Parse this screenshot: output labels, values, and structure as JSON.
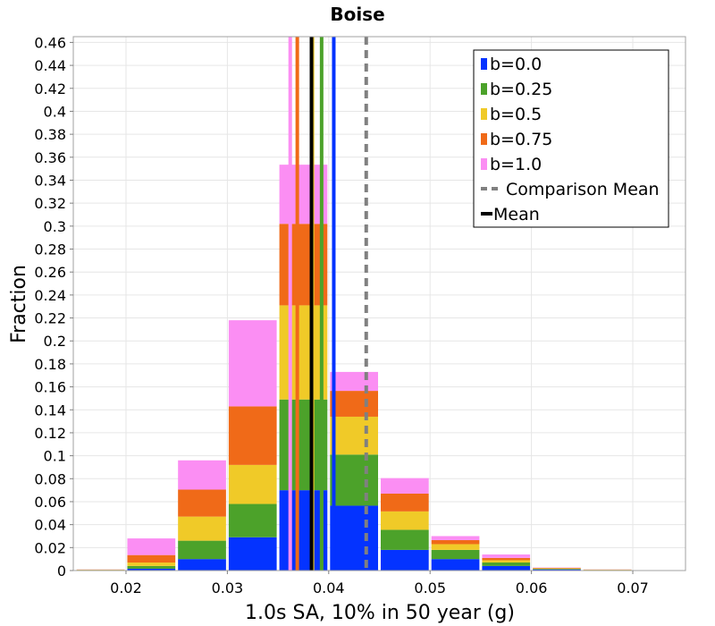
{
  "chart_data": {
    "type": "bar",
    "stacked": true,
    "title": "Boise",
    "xlabel": "1.0s SA, 10% in 50 year (g)",
    "ylabel": "Fraction",
    "xlim": [
      0.0148,
      0.0752
    ],
    "ylim": [
      0,
      0.465
    ],
    "grid": true,
    "legend_position": "top-right",
    "x_ticks": [
      "0.02",
      "0.03",
      "0.04",
      "0.05",
      "0.06",
      "0.07"
    ],
    "y_ticks": [
      "0",
      "0.02",
      "0.04",
      "0.06",
      "0.08",
      "0.1",
      "0.12",
      "0.14",
      "0.16",
      "0.18",
      "0.2",
      "0.22",
      "0.24",
      "0.26",
      "0.28",
      "0.3",
      "0.32",
      "0.34",
      "0.36",
      "0.38",
      "0.4",
      "0.42",
      "0.44",
      "0.46"
    ],
    "bins": [
      {
        "x0": 0.015,
        "x1": 0.02
      },
      {
        "x0": 0.02,
        "x1": 0.025
      },
      {
        "x0": 0.025,
        "x1": 0.03
      },
      {
        "x0": 0.03,
        "x1": 0.035
      },
      {
        "x0": 0.035,
        "x1": 0.04
      },
      {
        "x0": 0.04,
        "x1": 0.045
      },
      {
        "x0": 0.045,
        "x1": 0.05
      },
      {
        "x0": 0.05,
        "x1": 0.055
      },
      {
        "x0": 0.055,
        "x1": 0.06
      },
      {
        "x0": 0.06,
        "x1": 0.065
      },
      {
        "x0": 0.065,
        "x1": 0.07
      }
    ],
    "series": [
      {
        "name": "b=0.0",
        "color": "#0433ff",
        "values": [
          0.0003,
          0.0016,
          0.01,
          0.029,
          0.07,
          0.0565,
          0.018,
          0.01,
          0.004,
          0.001,
          0.0003
        ]
      },
      {
        "name": "b=0.25",
        "color": "#4ca22a",
        "values": [
          0.0002,
          0.0024,
          0.016,
          0.029,
          0.079,
          0.0445,
          0.0175,
          0.008,
          0.003,
          0.0005,
          0.0002
        ]
      },
      {
        "name": "b=0.5",
        "color": "#f0ca28",
        "values": [
          0.0002,
          0.003,
          0.021,
          0.034,
          0.082,
          0.033,
          0.016,
          0.005,
          0.002,
          0.0004,
          0.0002
        ]
      },
      {
        "name": "b=0.75",
        "color": "#f06a18",
        "values": [
          0.0002,
          0.0065,
          0.0235,
          0.051,
          0.071,
          0.0225,
          0.0155,
          0.0035,
          0.002,
          0.0004,
          0.0002
        ]
      },
      {
        "name": "b=1.0",
        "color": "#fb8ef3",
        "values": [
          0.0001,
          0.0145,
          0.0255,
          0.075,
          0.0515,
          0.0165,
          0.0135,
          0.0035,
          0.003,
          0.0003,
          0.0001
        ]
      }
    ],
    "mean_lines": [
      {
        "series": "b=0.0",
        "x": 0.0405
      },
      {
        "series": "b=0.25",
        "x": 0.0393
      },
      {
        "series": "b=0.5",
        "x": 0.0384
      },
      {
        "series": "b=0.75",
        "x": 0.0369
      },
      {
        "series": "b=1.0",
        "x": 0.0362
      }
    ],
    "mean": {
      "label": "Mean",
      "x": 0.0383,
      "color": "#000000"
    },
    "comparison_mean": {
      "label": "Comparison Mean",
      "x": 0.0437,
      "color": "#808080",
      "style": "dashed"
    }
  }
}
